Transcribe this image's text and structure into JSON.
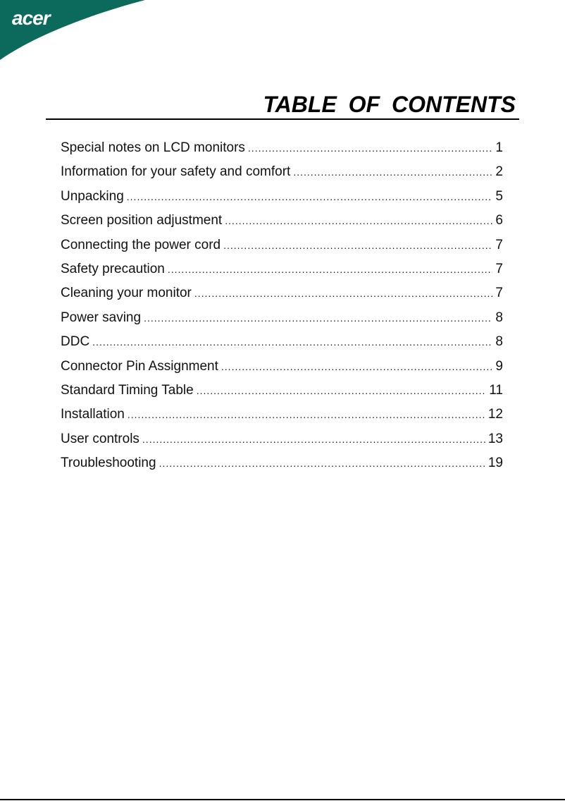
{
  "brand": {
    "logo": "acer",
    "color": "#0b6a5c"
  },
  "title": "TABLE OF CONTENTS",
  "entries": [
    {
      "title": "Special notes on LCD monitors",
      "page": "1"
    },
    {
      "title": "Information for your safety and comfort",
      "page": "2"
    },
    {
      "title": "Unpacking",
      "page": "5"
    },
    {
      "title": "Screen position adjustment",
      "page": "6"
    },
    {
      "title": "Connecting the power cord",
      "page": "7"
    },
    {
      "title": "Safety precaution",
      "page": "7"
    },
    {
      "title": "Cleaning your monitor",
      "page": "7"
    },
    {
      "title": "Power saving",
      "page": "8"
    },
    {
      "title": "DDC",
      "page": "8"
    },
    {
      "title": "Connector Pin Assignment",
      "page": "9"
    },
    {
      "title": "Standard Timing Table",
      "page": "11"
    },
    {
      "title": "Installation",
      "page": "12"
    },
    {
      "title": "User controls",
      "page": "13"
    },
    {
      "title": "Troubleshooting",
      "page": "19"
    }
  ]
}
